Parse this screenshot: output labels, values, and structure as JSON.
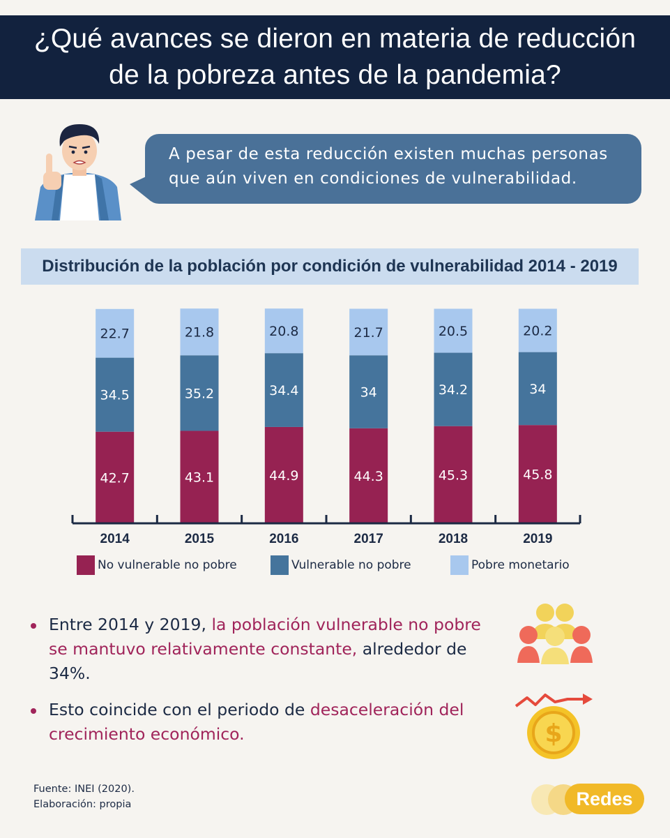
{
  "header": {
    "title_line1": "¿Qué avances se dieron en materia de reducción",
    "title_line2": "de la pobreza antes de la pandemia?"
  },
  "speech": {
    "line1": "A pesar de esta reducción existen muchas personas",
    "line2": "que aún viven en condiciones de vulnerabilidad."
  },
  "chart_data": {
    "type": "bar",
    "stacked": true,
    "title": "Distribución de la población por condición de vulnerabilidad 2014 - 2019",
    "categories": [
      "2014",
      "2015",
      "2016",
      "2017",
      "2018",
      "2019"
    ],
    "series": [
      {
        "name": "No vulnerable no pobre",
        "color": "#962252",
        "values": [
          42.7,
          43.1,
          44.9,
          44.3,
          45.3,
          45.8
        ]
      },
      {
        "name": "Vulnerable no pobre",
        "color": "#45749c",
        "values": [
          34.5,
          35.2,
          34.4,
          34,
          34.2,
          34
        ]
      },
      {
        "name": "Pobre monetario",
        "color": "#a8c8ee",
        "values": [
          22.7,
          21.8,
          20.8,
          21.7,
          20.5,
          20.2
        ]
      }
    ],
    "legend_position": "bottom",
    "grid": false
  },
  "bullets": [
    {
      "before": "Entre 2014 y 2019, ",
      "highlight": "la población vulnerable no pobre se mantuvo relativamente constante,",
      "after": " alrededor de 34%."
    },
    {
      "before": "Esto coincide con el periodo de ",
      "highlight": "desaceleración del crecimiento económico.",
      "after": ""
    }
  ],
  "footer": {
    "source": "Fuente: INEI (2020).",
    "credit": "Elaboración: propia",
    "logo_text": "Redes"
  },
  "colors": {
    "banner": "#12223e",
    "speech_bubble": "#4a7198",
    "title_band": "#cbdcef",
    "highlight": "#a0245a",
    "logo": "#f1b928"
  },
  "icons": [
    "person-pointing-icon",
    "people-group-icon",
    "coin-trend-icon"
  ]
}
